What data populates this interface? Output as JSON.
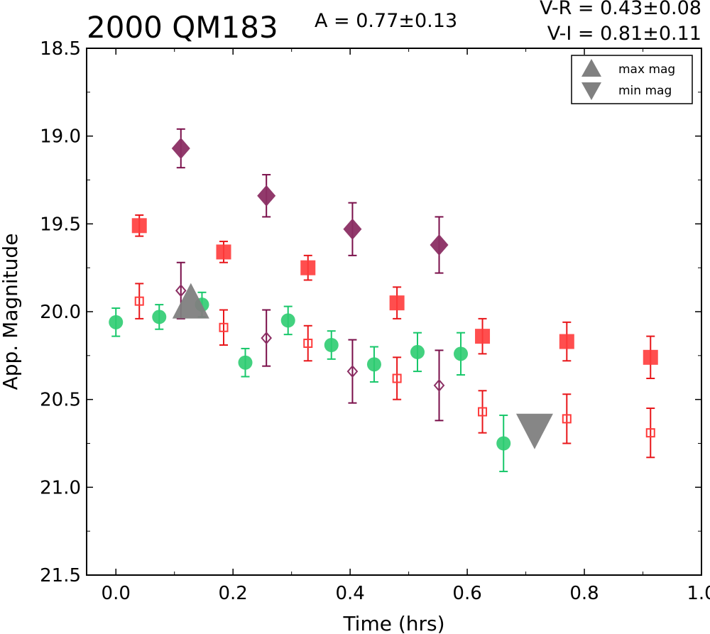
{
  "header": {
    "title": "2000 QM183",
    "amplitude": "A  = 0.77±0.13",
    "v_r": "V-R = 0.43±0.08",
    "v_i": "V-I  = 0.81±0.11"
  },
  "chart_data": {
    "type": "scatter",
    "title": "2000 QM183",
    "xlabel": "Time (hrs)",
    "ylabel": "App. Magnitude",
    "xlim": [
      -0.05,
      1.0
    ],
    "ylim": [
      21.5,
      18.5
    ],
    "y_inverted": true,
    "xticks": [
      "0.0",
      "0.2",
      "0.4",
      "0.6",
      "0.8",
      "1.0"
    ],
    "yticks": [
      "18.5",
      "19.0",
      "19.5",
      "20.0",
      "20.5",
      "21.0",
      "21.5"
    ],
    "grid": false,
    "legend": {
      "position": "top-right",
      "entries": [
        {
          "label": "max mag",
          "marker": "triangle-up",
          "color": "#808080"
        },
        {
          "label": "min mag",
          "marker": "triangle-down",
          "color": "#808080"
        }
      ]
    },
    "series": [
      {
        "marker": "circle",
        "color": "#2ecc71",
        "error_color": "#17c76a",
        "points": [
          {
            "x": 0.0,
            "y": 20.06,
            "err": 0.08
          },
          {
            "x": 0.074,
            "y": 20.03,
            "err": 0.07
          },
          {
            "x": 0.147,
            "y": 19.96,
            "err": 0.07
          },
          {
            "x": 0.221,
            "y": 20.29,
            "err": 0.08
          },
          {
            "x": 0.294,
            "y": 20.05,
            "err": 0.08
          },
          {
            "x": 0.368,
            "y": 20.19,
            "err": 0.08
          },
          {
            "x": 0.441,
            "y": 20.3,
            "err": 0.1
          },
          {
            "x": 0.515,
            "y": 20.23,
            "err": 0.11
          },
          {
            "x": 0.589,
            "y": 20.24,
            "err": 0.12
          },
          {
            "x": 0.662,
            "y": 20.75,
            "err": 0.16
          }
        ]
      },
      {
        "marker": "square",
        "color": "#ff3b3b",
        "error_color": "#e8161a",
        "points": [
          {
            "x": 0.04,
            "y": 19.51,
            "err": 0.06
          },
          {
            "x": 0.184,
            "y": 19.66,
            "err": 0.06
          },
          {
            "x": 0.328,
            "y": 19.75,
            "err": 0.07
          },
          {
            "x": 0.48,
            "y": 19.95,
            "err": 0.09
          },
          {
            "x": 0.626,
            "y": 20.14,
            "err": 0.1
          },
          {
            "x": 0.77,
            "y": 20.17,
            "err": 0.11
          },
          {
            "x": 0.913,
            "y": 20.26,
            "err": 0.12
          }
        ]
      },
      {
        "marker": "square-open",
        "color": "#ff3b3b",
        "error_color": "#e8161a",
        "points": [
          {
            "x": 0.04,
            "y": 19.94,
            "err": 0.1
          },
          {
            "x": 0.184,
            "y": 20.09,
            "err": 0.1
          },
          {
            "x": 0.328,
            "y": 20.18,
            "err": 0.1
          },
          {
            "x": 0.48,
            "y": 20.38,
            "err": 0.12
          },
          {
            "x": 0.626,
            "y": 20.57,
            "err": 0.12
          },
          {
            "x": 0.77,
            "y": 20.61,
            "err": 0.14
          },
          {
            "x": 0.913,
            "y": 20.69,
            "err": 0.14
          }
        ]
      },
      {
        "marker": "diamond",
        "color": "#8b2e63",
        "error_color": "#7a0f4a",
        "points": [
          {
            "x": 0.111,
            "y": 19.07,
            "err": 0.11
          },
          {
            "x": 0.257,
            "y": 19.34,
            "err": 0.12
          },
          {
            "x": 0.404,
            "y": 19.53,
            "err": 0.15
          },
          {
            "x": 0.552,
            "y": 19.62,
            "err": 0.16
          }
        ]
      },
      {
        "marker": "diamond-open",
        "color": "#8b2e63",
        "error_color": "#7a0f4a",
        "points": [
          {
            "x": 0.111,
            "y": 19.88,
            "err": 0.16
          },
          {
            "x": 0.257,
            "y": 20.15,
            "err": 0.16
          },
          {
            "x": 0.404,
            "y": 20.34,
            "err": 0.18
          },
          {
            "x": 0.552,
            "y": 20.42,
            "err": 0.2
          }
        ]
      }
    ],
    "extrema": [
      {
        "label": "max mag",
        "marker": "triangle-up",
        "x": 0.128,
        "y": 19.95,
        "color": "#808080"
      },
      {
        "label": "min mag",
        "marker": "triangle-down",
        "x": 0.715,
        "y": 20.67,
        "color": "#808080"
      }
    ]
  }
}
